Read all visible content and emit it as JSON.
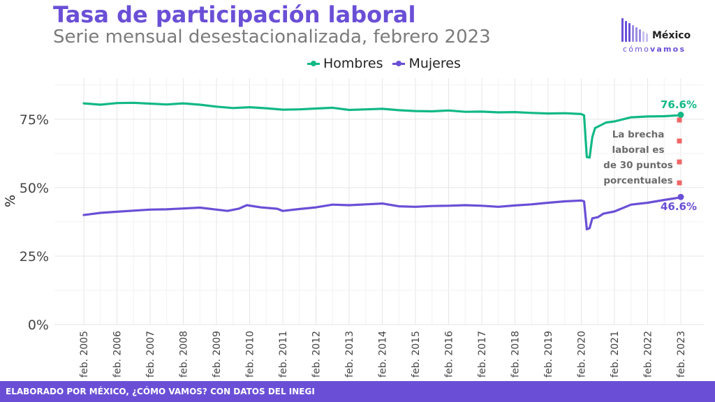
{
  "header": {
    "title": "Tasa de participación laboral",
    "subtitle": "Serie mensual desestacionalizada, febrero 2023"
  },
  "logo": {
    "name": "México",
    "tagline_light": "cómo",
    "tagline_bold": "vamos",
    "colors": [
      "#6a4fd6",
      "#9b8de3",
      "#c9c2f0"
    ]
  },
  "footer": {
    "text": "ELABORADO POR MÉXICO, ¿CÓMO VAMOS? CON DATOS DEL INEGI"
  },
  "chart_data": {
    "type": "line",
    "title": "Tasa de participación laboral",
    "subtitle": "Serie mensual desestacionalizada, febrero 2023",
    "xlabel": "",
    "ylabel": "%",
    "ylim": [
      0,
      90
    ],
    "yticks": [
      0,
      25,
      50,
      75
    ],
    "ytick_labels": [
      "0%",
      "25%",
      "50%",
      "75%"
    ],
    "x_start": "feb. 2005",
    "x_end": "feb. 2023",
    "xtick_labels": [
      "feb. 2005",
      "feb. 2006",
      "feb. 2007",
      "feb. 2008",
      "feb. 2009",
      "feb. 2010",
      "feb. 2011",
      "feb. 2012",
      "feb. 2013",
      "feb. 2014",
      "feb. 2015",
      "feb. 2016",
      "feb. 2017",
      "feb. 2018",
      "feb. 2019",
      "feb. 2020",
      "feb. 2021",
      "feb. 2022",
      "feb. 2023"
    ],
    "grid": true,
    "legend_position": "top",
    "series": [
      {
        "name": "Hombres",
        "color": "#12b886",
        "points": [
          [
            "2005-02",
            80.8
          ],
          [
            "2005-08",
            80.3
          ],
          [
            "2006-02",
            80.9
          ],
          [
            "2006-08",
            81.0
          ],
          [
            "2007-02",
            80.7
          ],
          [
            "2007-08",
            80.4
          ],
          [
            "2008-02",
            80.8
          ],
          [
            "2008-08",
            80.3
          ],
          [
            "2009-02",
            79.6
          ],
          [
            "2009-08",
            79.1
          ],
          [
            "2010-02",
            79.4
          ],
          [
            "2010-08",
            79.0
          ],
          [
            "2011-02",
            78.5
          ],
          [
            "2011-08",
            78.6
          ],
          [
            "2012-02",
            78.9
          ],
          [
            "2012-08",
            79.2
          ],
          [
            "2013-02",
            78.4
          ],
          [
            "2013-08",
            78.6
          ],
          [
            "2014-02",
            78.8
          ],
          [
            "2014-08",
            78.3
          ],
          [
            "2015-02",
            78.0
          ],
          [
            "2015-08",
            77.9
          ],
          [
            "2016-02",
            78.2
          ],
          [
            "2016-08",
            77.7
          ],
          [
            "2017-02",
            77.8
          ],
          [
            "2017-08",
            77.5
          ],
          [
            "2018-02",
            77.6
          ],
          [
            "2018-08",
            77.3
          ],
          [
            "2019-02",
            77.1
          ],
          [
            "2019-08",
            77.2
          ],
          [
            "2020-02",
            76.9
          ],
          [
            "2020-03",
            76.4
          ],
          [
            "2020-04",
            61.2
          ],
          [
            "2020-05",
            61.0
          ],
          [
            "2020-06",
            68.5
          ],
          [
            "2020-07",
            71.8
          ],
          [
            "2020-09",
            72.8
          ],
          [
            "2020-11",
            73.8
          ],
          [
            "2021-02",
            74.2
          ],
          [
            "2021-08",
            75.7
          ],
          [
            "2022-02",
            76.0
          ],
          [
            "2022-08",
            76.1
          ],
          [
            "2023-01",
            76.4
          ],
          [
            "2023-02",
            76.6
          ]
        ]
      },
      {
        "name": "Mujeres",
        "color": "#6a4fd6",
        "points": [
          [
            "2005-02",
            40.0
          ],
          [
            "2005-08",
            40.8
          ],
          [
            "2006-02",
            41.2
          ],
          [
            "2006-08",
            41.6
          ],
          [
            "2007-02",
            42.0
          ],
          [
            "2007-08",
            42.1
          ],
          [
            "2008-02",
            42.4
          ],
          [
            "2008-08",
            42.7
          ],
          [
            "2009-02",
            42.0
          ],
          [
            "2009-06",
            41.5
          ],
          [
            "2009-10",
            42.3
          ],
          [
            "2010-01",
            43.6
          ],
          [
            "2010-06",
            42.8
          ],
          [
            "2010-12",
            42.3
          ],
          [
            "2011-02",
            41.5
          ],
          [
            "2011-08",
            42.2
          ],
          [
            "2012-02",
            42.8
          ],
          [
            "2012-08",
            43.8
          ],
          [
            "2013-02",
            43.6
          ],
          [
            "2013-08",
            43.9
          ],
          [
            "2014-02",
            44.2
          ],
          [
            "2014-08",
            43.2
          ],
          [
            "2015-02",
            43.0
          ],
          [
            "2015-08",
            43.3
          ],
          [
            "2016-02",
            43.4
          ],
          [
            "2016-08",
            43.6
          ],
          [
            "2017-02",
            43.4
          ],
          [
            "2017-08",
            43.0
          ],
          [
            "2018-02",
            43.5
          ],
          [
            "2018-08",
            43.9
          ],
          [
            "2019-02",
            44.5
          ],
          [
            "2019-08",
            45.0
          ],
          [
            "2020-02",
            45.3
          ],
          [
            "2020-03",
            45.0
          ],
          [
            "2020-04",
            34.8
          ],
          [
            "2020-05",
            35.2
          ],
          [
            "2020-06",
            38.8
          ],
          [
            "2020-08",
            39.2
          ],
          [
            "2020-10",
            40.5
          ],
          [
            "2021-02",
            41.3
          ],
          [
            "2021-08",
            43.8
          ],
          [
            "2022-02",
            44.5
          ],
          [
            "2022-08",
            45.5
          ],
          [
            "2023-01",
            46.3
          ],
          [
            "2023-02",
            46.6
          ]
        ]
      }
    ],
    "annotations": {
      "hombres_last": "76.6%",
      "mujeres_last": "46.6%",
      "gap_lines": [
        "La brecha",
        "laboral es",
        "de 30 puntos",
        "porcentuales"
      ],
      "gap_marker_color": "#f06565"
    }
  }
}
